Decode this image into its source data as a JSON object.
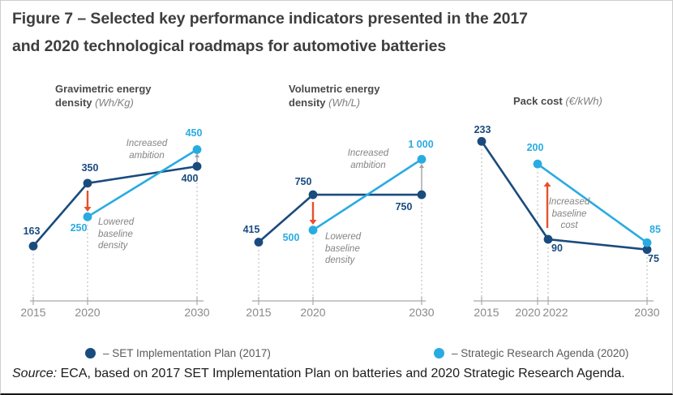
{
  "figure_title": {
    "line1": "Figure 7 – Selected key performance indicators presented in the 2017",
    "line2": "and 2020 technological roadmaps for automotive batteries"
  },
  "chart_data": [
    {
      "type": "line",
      "title": "Gravimetric energy",
      "title_line2": "density",
      "unit": "(Wh/Kg)",
      "x_ticks": [
        "2015",
        "2020",
        "2030"
      ],
      "xlim": [
        2015,
        2030
      ],
      "ylim": [
        0,
        680
      ],
      "series": [
        {
          "name": "SET Implementation Plan (2017)",
          "color_key": "dark",
          "points": [
            {
              "x": 2015,
              "y": 163,
              "label": "163"
            },
            {
              "x": 2020,
              "y": 350,
              "label": "350"
            },
            {
              "x": 2030,
              "y": 400,
              "label": "400"
            }
          ]
        },
        {
          "name": "Strategic Research Agenda (2020)",
          "color_key": "light",
          "points": [
            {
              "x": 2020,
              "y": 250,
              "label": "250"
            },
            {
              "x": 2030,
              "y": 450,
              "label": "450"
            }
          ]
        }
      ],
      "annotations": [
        {
          "id": "increased-ambition",
          "lines": [
            "Increased",
            "ambition"
          ]
        },
        {
          "id": "lowered-baseline-density",
          "lines": [
            "Lowered",
            "baseline",
            "density"
          ]
        }
      ]
    },
    {
      "type": "line",
      "title": "Volumetric energy",
      "title_line2": "density",
      "unit": "(Wh/L)",
      "x_ticks": [
        "2015",
        "2020",
        "2030"
      ],
      "xlim": [
        2015,
        2030
      ],
      "ylim": [
        0,
        1615
      ],
      "series": [
        {
          "name": "SET Implementation Plan (2017)",
          "color_key": "dark",
          "points": [
            {
              "x": 2015,
              "y": 415,
              "label": "415"
            },
            {
              "x": 2020,
              "y": 750,
              "label": "750"
            },
            {
              "x": 2030,
              "y": 750,
              "label": "750"
            }
          ]
        },
        {
          "name": "Strategic Research Agenda (2020)",
          "color_key": "light",
          "points": [
            {
              "x": 2020,
              "y": 500,
              "label": "500"
            },
            {
              "x": 2030,
              "y": 1000,
              "label": "1 000"
            }
          ]
        }
      ],
      "annotations": [
        {
          "id": "increased-ambition",
          "lines": [
            "Increased",
            "ambition"
          ]
        },
        {
          "id": "lowered-baseline-density",
          "lines": [
            "Lowered",
            "baseline",
            "density"
          ]
        }
      ]
    },
    {
      "type": "line",
      "title": "Pack cost",
      "unit": "(€/kWh)",
      "x_ticks": [
        "2015",
        "2020",
        "2022",
        "2030"
      ],
      "xlim": [
        2015,
        2030
      ],
      "ylim": [
        0,
        334
      ],
      "series": [
        {
          "name": "SET Implementation Plan (2017)",
          "color_key": "dark",
          "points": [
            {
              "x": 2015,
              "y": 233,
              "label": "233"
            },
            {
              "x": 2022,
              "y": 90,
              "label": "90"
            },
            {
              "x": 2030,
              "y": 75,
              "label": "75"
            }
          ]
        },
        {
          "name": "Strategic Research Agenda (2020)",
          "color_key": "light",
          "points": [
            {
              "x": 2020,
              "y": 200,
              "label": "200"
            },
            {
              "x": 2030,
              "y": 85,
              "label": "85"
            }
          ]
        }
      ],
      "annotations": [
        {
          "id": "increased-baseline-cost",
          "lines": [
            "Increased",
            "baseline",
            "cost"
          ]
        }
      ]
    }
  ],
  "legend": [
    {
      "color_key": "dark",
      "label": "– SET Implementation Plan (2017)"
    },
    {
      "color_key": "light",
      "label": "– Strategic Research Agenda (2020)"
    }
  ],
  "source": {
    "prefix": "Source:",
    "text": " ECA, based on 2017 SET Implementation Plan on batteries and 2020 Strategic Research Agenda."
  },
  "colors": {
    "dark_blue": "#1a4b7e",
    "light_blue": "#29abe2",
    "red_orange": "#e8502a",
    "axis_gray": "#a9a9a9",
    "dash_gray": "#bdbdbd",
    "arrow_gray": "#a3a3a3"
  }
}
